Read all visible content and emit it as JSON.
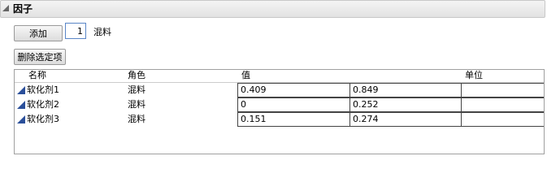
{
  "header": {
    "title": "因子"
  },
  "toolbar": {
    "add_button": "添加",
    "count": 1,
    "count_type": "混料",
    "delete_button": "删除选定项"
  },
  "table": {
    "columns": [
      "名称",
      "角色",
      "值",
      "单位"
    ],
    "rows": [
      {
        "name": "软化剂1",
        "role": "混料",
        "values": [
          0.409,
          0.849
        ]
      },
      {
        "name": "软化剂2",
        "role": "混料",
        "values": [
          0,
          0.252
        ]
      },
      {
        "name": "软化剂3",
        "role": "混料",
        "values": [
          0.151,
          0.274
        ]
      }
    ]
  }
}
